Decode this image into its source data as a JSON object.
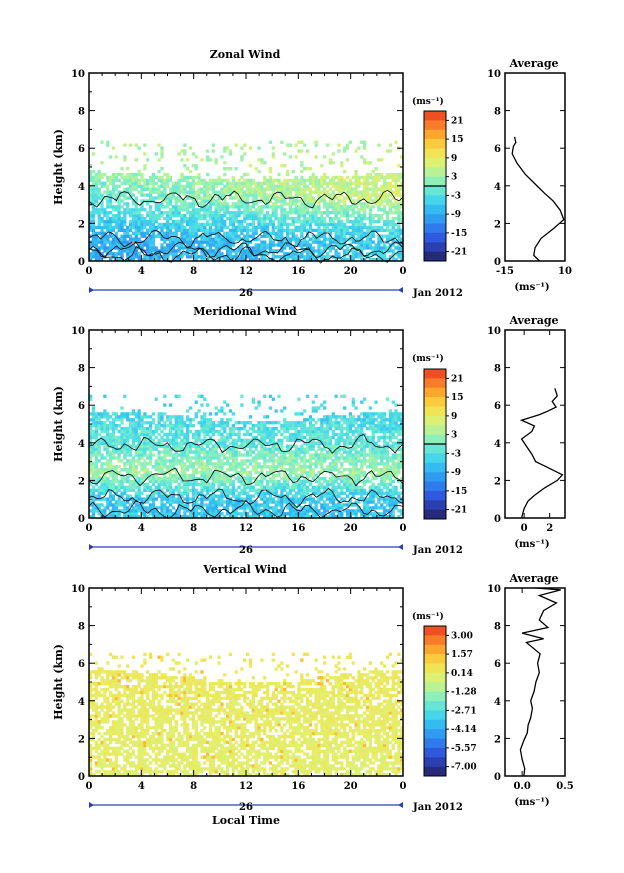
{
  "chart_data": [
    {
      "type": "heatmap",
      "title": "Zonal Wind",
      "ylabel": "Height (km)",
      "xlabel": "",
      "xlim": [
        0,
        24
      ],
      "ylim": [
        0,
        10
      ],
      "xticks": [
        "0",
        "4",
        "8",
        "12",
        "16",
        "20",
        "0"
      ],
      "yticks": [
        "0",
        "2",
        "4",
        "6",
        "8",
        "10"
      ],
      "date_label": "26",
      "month_label": "Jan 2012",
      "colorbar": {
        "unit": "(ms⁻¹)",
        "range": [
          -24,
          24
        ],
        "ticks": [
          "21",
          "15",
          "9",
          "3",
          "-3",
          "-9",
          "-15",
          "-21"
        ]
      },
      "average": {
        "title": "Average",
        "xlabel": "(ms⁻¹)",
        "xlim": [
          -15,
          10
        ],
        "xticks": [
          "-15",
          "10"
        ],
        "profile": [
          [
            -0.6,
            0
          ],
          [
            -3,
            0.3
          ],
          [
            -2.5,
            0.7
          ],
          [
            0,
            1.2
          ],
          [
            5,
            1.7
          ],
          [
            9.5,
            2.2
          ],
          [
            8,
            2.7
          ],
          [
            5,
            3.2
          ],
          [
            1.5,
            3.6
          ],
          [
            -2.5,
            4.1
          ],
          [
            -6.5,
            4.6
          ],
          [
            -10,
            5.2
          ],
          [
            -12,
            5.7
          ],
          [
            -11.5,
            6.1
          ],
          [
            -10.5,
            6.3
          ],
          [
            -11,
            6.6
          ]
        ]
      },
      "field": {
        "base": [
          [
            1,
            -9
          ],
          [
            3,
            -3
          ],
          [
            5,
            3
          ],
          [
            6.5,
            3
          ],
          [
            8,
            -3
          ],
          [
            10.5,
            -12
          ],
          [
            12.5,
            -18
          ]
        ],
        "slope": [
          [
            2,
            4
          ],
          [
            3.4,
            9
          ],
          [
            5,
            3
          ],
          [
            10,
            -2
          ]
        ],
        "cover_top": 4.8,
        "sparse_top": 6.4,
        "zero_contours": [
          1.2,
          3.3,
          0.6,
          0.3
        ]
      }
    },
    {
      "type": "heatmap",
      "title": "Meridional Wind",
      "ylabel": "Height (km)",
      "xlabel": "",
      "xlim": [
        0,
        24
      ],
      "ylim": [
        0,
        10
      ],
      "xticks": [
        "0",
        "4",
        "8",
        "12",
        "16",
        "20",
        "0"
      ],
      "yticks": [
        "0",
        "2",
        "4",
        "6",
        "8",
        "10"
      ],
      "date_label": "26",
      "month_label": "Jan 2012",
      "colorbar": {
        "unit": "(ms⁻¹)",
        "range": [
          -24,
          24
        ],
        "ticks": [
          "21",
          "15",
          "9",
          "3",
          "-3",
          "-9",
          "-15",
          "-21"
        ]
      },
      "average": {
        "title": "Average",
        "xlabel": "(ms⁻¹)",
        "xlim": [
          -1.5,
          3.2
        ],
        "xticks": [
          "0",
          "2"
        ],
        "profile": [
          [
            -0.2,
            0
          ],
          [
            0,
            0.5
          ],
          [
            0.3,
            0.9
          ],
          [
            0.8,
            1.2
          ],
          [
            1.6,
            1.6
          ],
          [
            2.6,
            2
          ],
          [
            3,
            2.3
          ],
          [
            1.8,
            2.7
          ],
          [
            0.9,
            3
          ],
          [
            0.6,
            3.4
          ],
          [
            0.2,
            3.8
          ],
          [
            -0.2,
            4.2
          ],
          [
            0.6,
            4.6
          ],
          [
            0.8,
            4.9
          ],
          [
            -0.2,
            5.2
          ],
          [
            1.2,
            5.5
          ],
          [
            1.9,
            5.7
          ],
          [
            2.5,
            5.9
          ],
          [
            2.2,
            6.2
          ],
          [
            2.6,
            6.5
          ],
          [
            2.4,
            6.9
          ]
        ]
      },
      "field": {
        "base": [
          [
            1,
            -6
          ],
          [
            2.5,
            3
          ],
          [
            4,
            -2
          ],
          [
            5.5,
            -4
          ],
          [
            7,
            -3
          ],
          [
            9,
            -6
          ]
        ],
        "slope": [
          [
            2,
            0
          ],
          [
            5,
            0
          ]
        ],
        "cover_top": 5.4,
        "sparse_top": 6.5,
        "zero_contours": [
          1.1,
          2.2,
          3.9,
          0.4
        ]
      }
    },
    {
      "type": "heatmap",
      "title": "Vertical Wind",
      "ylabel": "Height (km)",
      "xlabel": "Local Time",
      "xlim": [
        0,
        24
      ],
      "ylim": [
        0,
        10
      ],
      "xticks": [
        "0",
        "4",
        "8",
        "12",
        "16",
        "20",
        "0"
      ],
      "yticks": [
        "0",
        "2",
        "4",
        "6",
        "8",
        "10"
      ],
      "date_label": "26",
      "month_label": "Jan 2012",
      "colorbar": {
        "unit": "(ms⁻¹)",
        "range": [
          -8.5,
          4.5
        ],
        "ticks": [
          "3.00",
          "1.57",
          "0.14",
          "-1.28",
          "-2.71",
          "-4.14",
          "-5.57",
          "-7.00"
        ]
      },
      "average": {
        "title": "Average",
        "xlabel": "(ms⁻¹)",
        "xlim": [
          -0.2,
          0.5
        ],
        "xticks": [
          "0.0",
          "0.5"
        ],
        "profile": [
          [
            0.02,
            0
          ],
          [
            0.03,
            0.4
          ],
          [
            0.0,
            0.9
          ],
          [
            -0.02,
            1.4
          ],
          [
            0.02,
            1.9
          ],
          [
            0.06,
            2.3
          ],
          [
            0.07,
            2.7
          ],
          [
            0.1,
            3.1
          ],
          [
            0.12,
            3.6
          ],
          [
            0.1,
            4
          ],
          [
            0.14,
            4.5
          ],
          [
            0.16,
            5
          ],
          [
            0.2,
            5.5
          ],
          [
            0.18,
            6
          ],
          [
            0.21,
            6.5
          ],
          [
            0.05,
            7.1
          ],
          [
            0.25,
            7.3
          ],
          [
            0.0,
            7.6
          ],
          [
            0.3,
            7.9
          ],
          [
            0.2,
            8.3
          ],
          [
            0.25,
            8.8
          ],
          [
            0.4,
            9.2
          ],
          [
            0.2,
            9.6
          ],
          [
            0.45,
            9.9
          ],
          [
            0.15,
            10
          ]
        ]
      },
      "field": {
        "base": [
          [
            1,
            0.25
          ],
          [
            3,
            0.35
          ],
          [
            5,
            0.5
          ],
          [
            6.5,
            0.7
          ]
        ],
        "slope": [
          [
            2,
            0
          ]
        ],
        "cover_top": 5.3,
        "sparse_top": 6.6,
        "zero_contours": []
      }
    }
  ]
}
